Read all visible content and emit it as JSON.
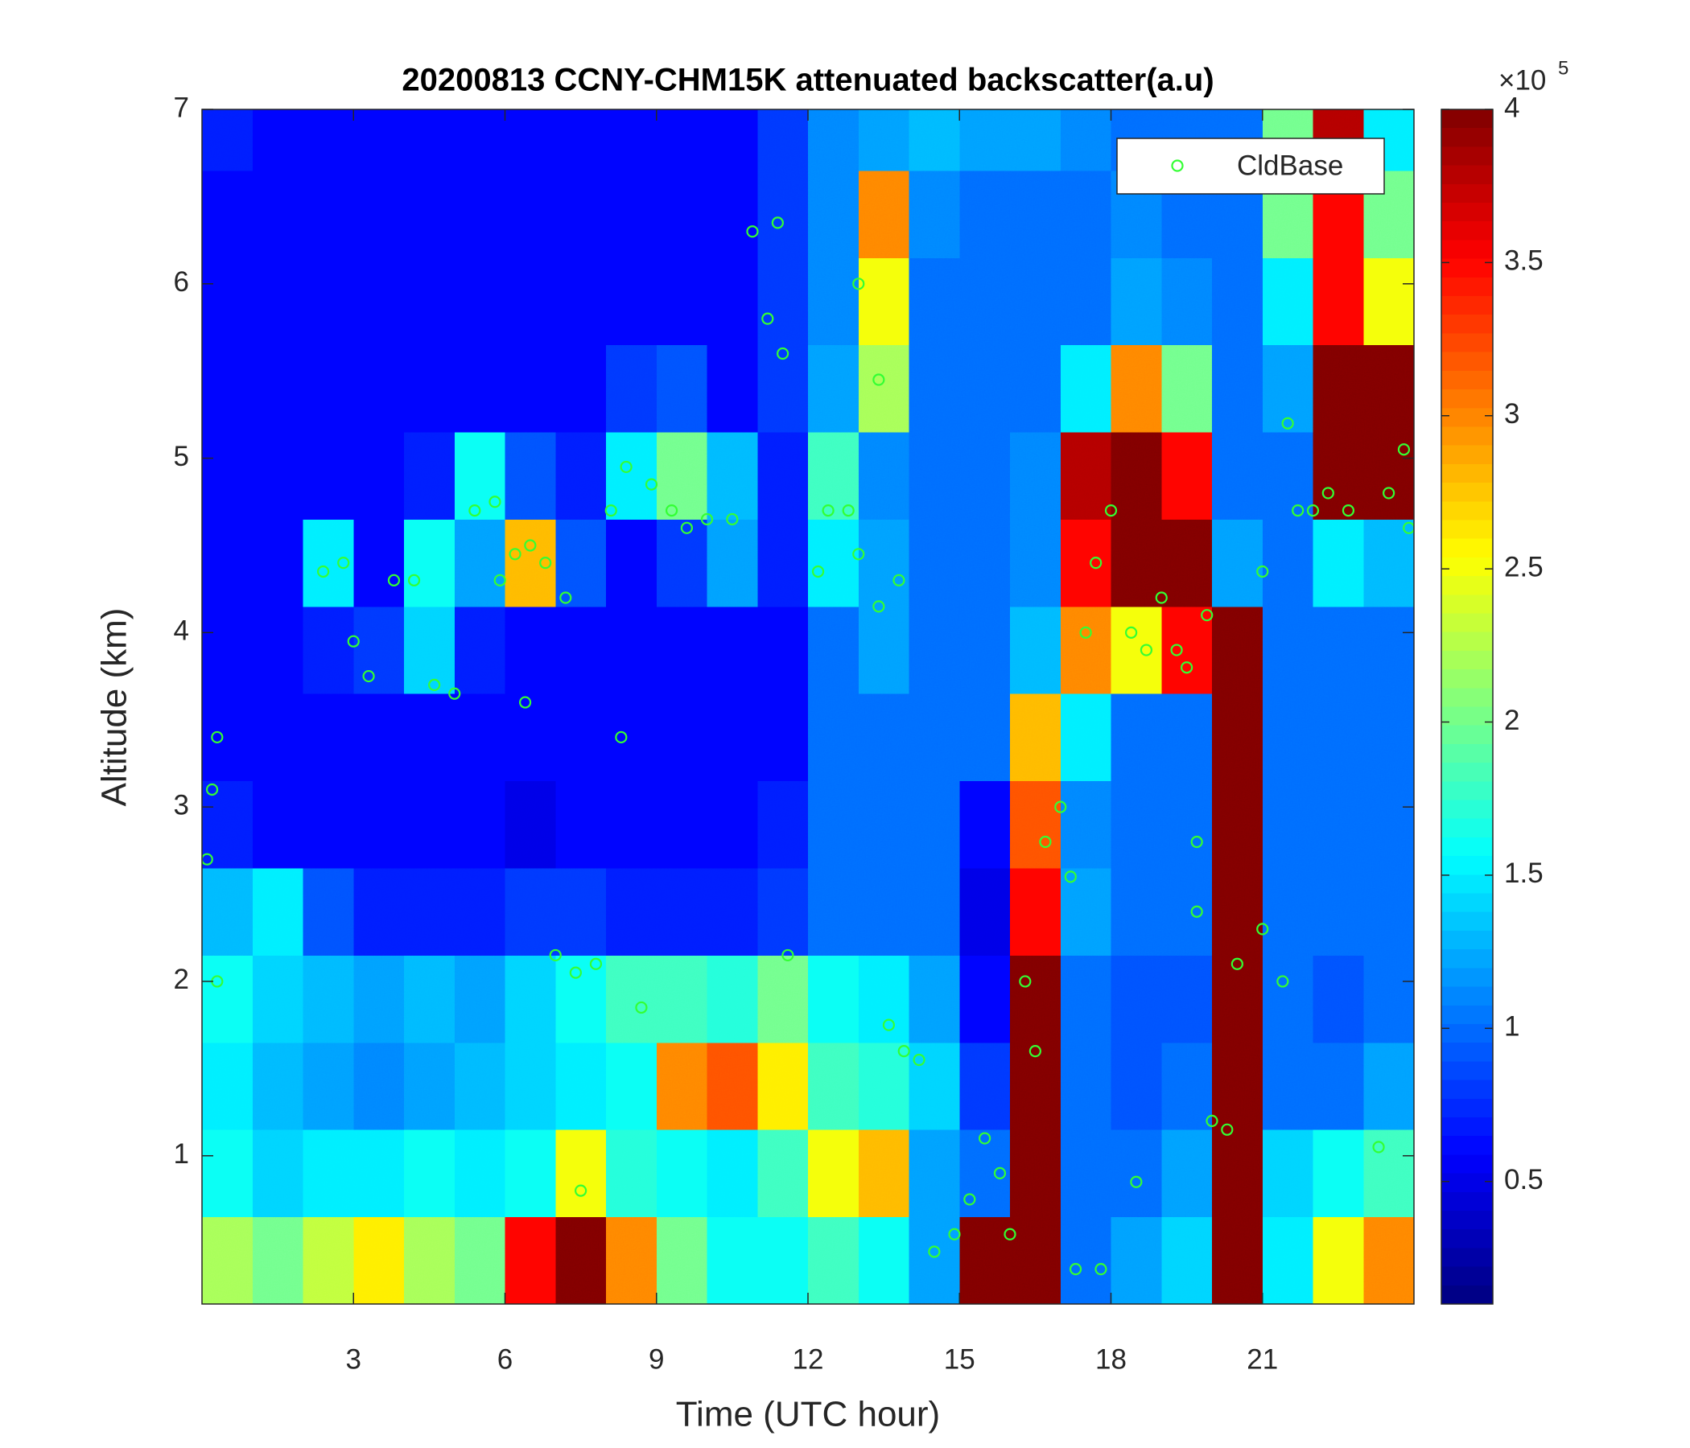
{
  "chart_data": {
    "type": "heatmap",
    "title": "20200813 CCNY-CHM15K attenuated backscatter(a.u)",
    "x_label": "Time (UTC hour)",
    "y_label": "Altitude (km)",
    "xlim": [
      0,
      24
    ],
    "ylim": [
      0.15,
      7
    ],
    "xticks": [
      3,
      6,
      9,
      12,
      15,
      18,
      21
    ],
    "yticks": [
      1,
      2,
      3,
      4,
      5,
      6,
      7
    ],
    "colormap": "jet",
    "x": [
      0.5,
      1.5,
      2.5,
      3.5,
      4.5,
      5.5,
      6.5,
      7.5,
      8.5,
      9.5,
      10.5,
      11.5,
      12.5,
      13.5,
      14.5,
      15.5,
      16.5,
      17.5,
      18.5,
      19.5,
      20.5,
      21.5,
      22.5,
      23.5
    ],
    "y": [
      0.4,
      0.9,
      1.4,
      1.9,
      2.4,
      2.9,
      3.4,
      3.9,
      4.4,
      4.9,
      5.4,
      5.9,
      6.4,
      6.9
    ],
    "z": [
      [
        2.2,
        2.0,
        2.3,
        2.6,
        2.2,
        2.0,
        3.5,
        4.0,
        3.0,
        2.0,
        1.6,
        1.6,
        1.8,
        1.6,
        1.2,
        4.0,
        4.0,
        1.0,
        1.2,
        1.4,
        4.0,
        1.5,
        2.5,
        3.0
      ],
      [
        1.6,
        1.4,
        1.5,
        1.5,
        1.6,
        1.5,
        1.6,
        2.5,
        1.7,
        1.6,
        1.5,
        1.8,
        2.5,
        2.8,
        1.2,
        1.0,
        4.0,
        1.0,
        1.0,
        1.2,
        4.0,
        1.4,
        1.6,
        1.8
      ],
      [
        1.5,
        1.3,
        1.2,
        1.1,
        1.2,
        1.3,
        1.4,
        1.5,
        1.6,
        3.0,
        3.2,
        2.6,
        1.8,
        1.7,
        1.4,
        0.8,
        4.0,
        1.0,
        0.9,
        1.0,
        4.0,
        1.0,
        1.0,
        1.2
      ],
      [
        1.6,
        1.4,
        1.3,
        1.2,
        1.3,
        1.2,
        1.4,
        1.6,
        1.8,
        1.8,
        1.7,
        2.0,
        1.6,
        1.5,
        1.2,
        0.6,
        4.0,
        1.0,
        0.9,
        0.9,
        4.0,
        1.0,
        0.9,
        1.0
      ],
      [
        1.3,
        1.5,
        0.9,
        0.7,
        0.7,
        0.7,
        0.8,
        0.8,
        0.7,
        0.7,
        0.7,
        0.8,
        1.0,
        1.0,
        1.0,
        0.5,
        3.5,
        1.2,
        1.0,
        1.0,
        4.0,
        1.0,
        1.0,
        1.0
      ],
      [
        0.7,
        0.6,
        0.6,
        0.6,
        0.6,
        0.6,
        0.5,
        0.6,
        0.6,
        0.6,
        0.6,
        0.7,
        1.0,
        1.0,
        1.0,
        0.6,
        3.2,
        1.1,
        1.0,
        1.0,
        4.0,
        1.0,
        1.0,
        1.0
      ],
      [
        0.6,
        0.6,
        0.6,
        0.6,
        0.6,
        0.6,
        0.6,
        0.6,
        0.6,
        0.6,
        0.6,
        0.6,
        1.0,
        1.0,
        1.0,
        1.0,
        2.8,
        1.5,
        1.0,
        1.0,
        4.0,
        1.0,
        1.0,
        1.0
      ],
      [
        0.6,
        0.6,
        0.7,
        0.8,
        1.4,
        0.7,
        0.6,
        0.6,
        0.6,
        0.6,
        0.6,
        0.6,
        1.0,
        1.2,
        1.0,
        1.0,
        1.3,
        3.0,
        2.5,
        3.5,
        4.0,
        1.0,
        1.0,
        1.0
      ],
      [
        0.6,
        0.6,
        1.5,
        0.6,
        1.6,
        1.2,
        2.8,
        0.9,
        0.6,
        0.8,
        1.2,
        0.7,
        1.5,
        1.2,
        1.0,
        1.0,
        1.1,
        3.5,
        4.0,
        4.0,
        1.2,
        1.0,
        1.5,
        1.3
      ],
      [
        0.6,
        0.6,
        0.6,
        0.6,
        0.7,
        1.6,
        0.9,
        0.7,
        1.5,
        2.0,
        1.3,
        0.7,
        1.8,
        1.1,
        1.0,
        1.0,
        1.1,
        3.8,
        4.0,
        3.5,
        1.0,
        1.0,
        4.0,
        4.0
      ],
      [
        0.6,
        0.6,
        0.6,
        0.6,
        0.6,
        0.6,
        0.6,
        0.6,
        0.8,
        0.9,
        0.6,
        0.8,
        1.2,
        2.2,
        1.0,
        1.0,
        1.0,
        1.5,
        3.0,
        2.0,
        1.0,
        1.2,
        4.0,
        4.0
      ],
      [
        0.6,
        0.6,
        0.6,
        0.6,
        0.6,
        0.6,
        0.6,
        0.6,
        0.6,
        0.6,
        0.6,
        0.8,
        1.1,
        2.5,
        1.0,
        1.0,
        1.0,
        1.0,
        1.2,
        1.1,
        1.0,
        1.5,
        3.5,
        2.5
      ],
      [
        0.6,
        0.6,
        0.6,
        0.6,
        0.6,
        0.6,
        0.6,
        0.6,
        0.6,
        0.6,
        0.6,
        0.8,
        1.1,
        3.0,
        1.1,
        1.0,
        1.0,
        1.0,
        1.1,
        1.0,
        1.0,
        2.0,
        3.5,
        2.0
      ],
      [
        0.7,
        0.6,
        0.6,
        0.6,
        0.6,
        0.6,
        0.6,
        0.6,
        0.6,
        0.6,
        0.6,
        0.8,
        1.1,
        1.2,
        1.3,
        1.2,
        1.2,
        1.1,
        1.0,
        1.0,
        1.0,
        2.0,
        3.8,
        1.5
      ]
    ],
    "colorbar": {
      "clim": [
        0.1,
        4
      ],
      "ticks": [
        0.5,
        1,
        1.5,
        2,
        2.5,
        3,
        3.5,
        4
      ],
      "multiplier": "×10",
      "multiplier_exponent": "5"
    },
    "legend_loc": "upper right",
    "series": [
      {
        "name": "CldBase",
        "type": "scatter",
        "color": "#33ff33",
        "x": [
          0.1,
          0.2,
          0.3,
          0.3,
          2.4,
          2.8,
          3.0,
          3.3,
          3.8,
          4.2,
          4.6,
          5.0,
          5.4,
          5.8,
          5.9,
          6.2,
          6.4,
          6.5,
          6.8,
          7.0,
          7.2,
          7.4,
          7.5,
          7.8,
          8.1,
          8.3,
          8.4,
          8.7,
          8.9,
          9.3,
          9.6,
          10.0,
          10.5,
          10.9,
          11.2,
          11.4,
          11.5,
          11.6,
          12.2,
          12.4,
          12.8,
          13.0,
          13.0,
          13.4,
          13.4,
          13.8,
          13.6,
          13.9,
          14.2,
          14.5,
          14.9,
          15.2,
          15.5,
          15.8,
          16.0,
          16.3,
          16.5,
          16.7,
          17.0,
          17.2,
          17.5,
          17.7,
          18.0,
          18.4,
          18.7,
          19.0,
          19.3,
          19.5,
          19.7,
          19.7,
          19.9,
          20.0,
          20.3,
          20.5,
          21.0,
          21.0,
          21.4,
          21.7,
          22.0,
          22.3,
          22.7,
          23.3,
          23.5,
          23.8,
          23.9,
          17.3,
          17.8,
          18.5,
          21.5
        ],
        "values": [
          2.7,
          3.1,
          3.4,
          2.0,
          4.35,
          4.4,
          3.95,
          3.75,
          4.3,
          4.3,
          3.7,
          3.65,
          4.7,
          4.75,
          4.3,
          4.45,
          3.6,
          4.5,
          4.4,
          2.15,
          4.2,
          2.05,
          0.8,
          2.1,
          4.7,
          3.4,
          4.95,
          1.85,
          4.85,
          4.7,
          4.6,
          4.65,
          4.65,
          6.3,
          5.8,
          6.35,
          5.6,
          2.15,
          4.35,
          4.7,
          4.7,
          6.0,
          4.45,
          5.45,
          4.15,
          4.3,
          1.75,
          1.6,
          1.55,
          0.45,
          0.55,
          0.75,
          1.1,
          0.9,
          0.55,
          2.0,
          1.6,
          2.8,
          3.0,
          2.6,
          4.0,
          4.4,
          4.7,
          4.0,
          3.9,
          4.2,
          3.9,
          3.8,
          2.8,
          2.4,
          4.1,
          1.2,
          1.15,
          2.1,
          2.3,
          4.35,
          2.0,
          4.7,
          4.7,
          4.8,
          4.7,
          1.05,
          4.8,
          5.05,
          4.6,
          0.35,
          0.35,
          0.85,
          5.2
        ]
      }
    ]
  }
}
